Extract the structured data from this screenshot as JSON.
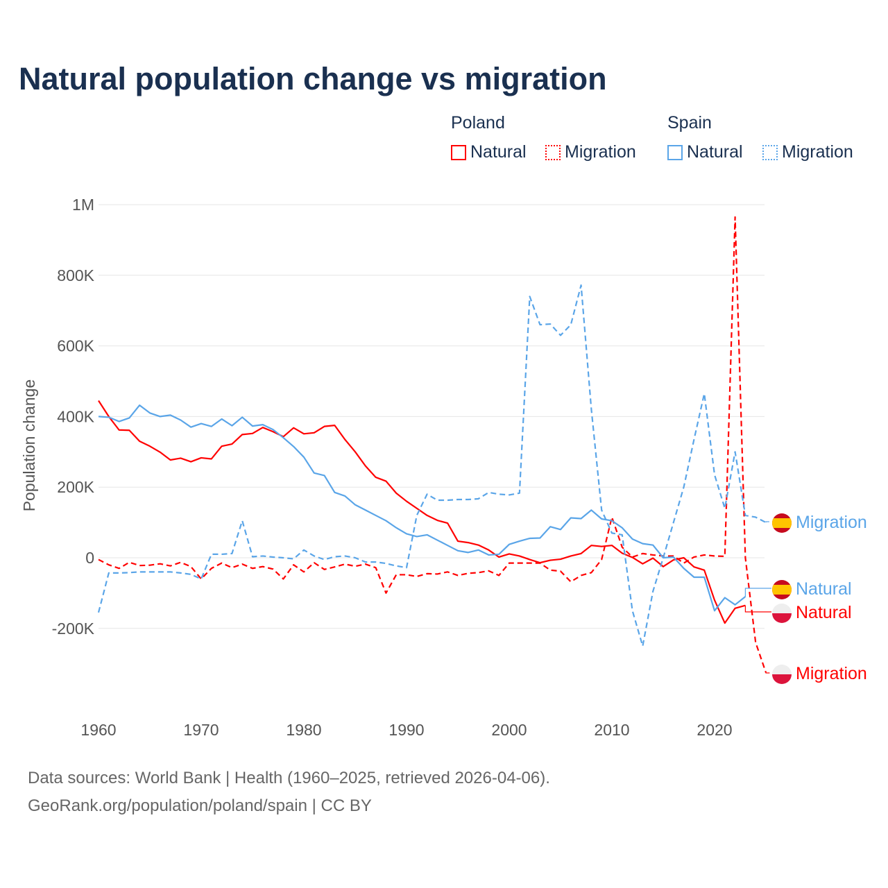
{
  "title": "Natural population change vs migration",
  "legend": {
    "groups": [
      {
        "name": "Poland",
        "items": [
          {
            "label": "Natural",
            "style": "solid"
          },
          {
            "label": "Migration",
            "style": "dotted"
          }
        ]
      },
      {
        "name": "Spain",
        "items": [
          {
            "label": "Natural",
            "style": "solid"
          },
          {
            "label": "Migration",
            "style": "dotted"
          }
        ]
      }
    ]
  },
  "footer": {
    "line1": "Data sources: World Bank | Health (1960–2025, retrieved 2026-04-06).",
    "line2": "GeoRank.org/population/poland/spain | CC BY"
  },
  "colors": {
    "poland": "#ff0000",
    "spain": "#5aa5e8",
    "title": "#1a3050"
  },
  "chart_data": {
    "type": "line",
    "title": "Natural population change vs migration",
    "xlabel": "",
    "ylabel": "Population change",
    "xlim": [
      1960,
      2025
    ],
    "ylim": [
      -350000,
      1000000
    ],
    "x_ticks": [
      1960,
      1970,
      1980,
      1990,
      2000,
      2010,
      2020
    ],
    "x_tick_labels": [
      "1960",
      "1970",
      "1980",
      "1990",
      "2000",
      "2010",
      "2020"
    ],
    "y_ticks": [
      1000000,
      800000,
      600000,
      400000,
      200000,
      0,
      -200000
    ],
    "y_tick_labels": [
      "1M",
      "800K",
      "600K",
      "400K",
      "200K",
      "0",
      "-200K"
    ],
    "grid": true,
    "legend_position": "top-right",
    "series": [
      {
        "name": "Poland Natural",
        "country": "poland",
        "dashed": false,
        "start": 1960,
        "end_label": "Natural",
        "values": [
          445,
          400,
          362,
          361,
          330,
          316,
          299,
          277,
          282,
          272,
          283,
          280,
          316,
          322,
          349,
          352,
          369,
          357,
          343,
          368,
          351,
          354,
          372,
          375,
          335,
          300,
          260,
          228,
          217,
          183,
          160,
          140,
          120,
          106,
          98,
          47,
          43,
          36,
          22,
          2,
          11,
          5,
          -5,
          -14,
          -7,
          -4,
          5,
          12,
          35,
          32,
          35,
          13,
          1,
          -17,
          -1,
          -25,
          -6,
          0,
          -26,
          -35,
          -120,
          -185,
          -143,
          -135
        ]
      },
      {
        "name": "Poland Migration",
        "country": "poland",
        "dashed": true,
        "start": 1960,
        "end_label": "Migration",
        "values": [
          -5,
          -20,
          -30,
          -13,
          -22,
          -21,
          -17,
          -23,
          -13,
          -25,
          -60,
          -30,
          -15,
          -28,
          -18,
          -30,
          -25,
          -32,
          -60,
          -20,
          -40,
          -14,
          -33,
          -26,
          -18,
          -24,
          -18,
          -28,
          -100,
          -48,
          -48,
          -53,
          -45,
          -46,
          -40,
          -50,
          -44,
          -42,
          -37,
          -50,
          -15,
          -15,
          -15,
          -15,
          -35,
          -38,
          -68,
          -50,
          -42,
          -5,
          115,
          30,
          2,
          12,
          8,
          5,
          5,
          -15,
          2,
          8,
          5,
          4,
          965,
          0,
          -240,
          -325
        ]
      },
      {
        "name": "Spain Natural",
        "country": "spain",
        "dashed": false,
        "start": 1960,
        "end_label": "Natural",
        "values": [
          400,
          398,
          386,
          396,
          432,
          410,
          400,
          404,
          390,
          370,
          380,
          372,
          393,
          374,
          398,
          373,
          377,
          363,
          340,
          315,
          285,
          240,
          233,
          185,
          175,
          150,
          135,
          120,
          105,
          85,
          68,
          60,
          65,
          50,
          35,
          20,
          15,
          22,
          8,
          10,
          38,
          47,
          55,
          56,
          88,
          80,
          113,
          111,
          135,
          110,
          105,
          85,
          53,
          40,
          36,
          0,
          2,
          -30,
          -55,
          -55,
          -150,
          -113,
          -133,
          -110
        ]
      },
      {
        "name": "Spain Migration",
        "country": "spain",
        "dashed": true,
        "start": 1960,
        "end_label": "Migration",
        "values": [
          -155,
          -43,
          -43,
          -42,
          -40,
          -40,
          -40,
          -40,
          -43,
          -47,
          -60,
          10,
          10,
          12,
          105,
          3,
          5,
          2,
          0,
          -3,
          22,
          5,
          -5,
          3,
          5,
          0,
          -12,
          -12,
          -16,
          -23,
          -28,
          120,
          180,
          163,
          163,
          165,
          165,
          167,
          185,
          180,
          178,
          183,
          740,
          660,
          662,
          630,
          660,
          772,
          420,
          135,
          70,
          65,
          -150,
          -250,
          -95,
          0,
          100,
          200,
          335,
          465,
          235,
          140,
          300,
          120,
          115,
          100
        ]
      }
    ],
    "values_unit": "thousands"
  }
}
